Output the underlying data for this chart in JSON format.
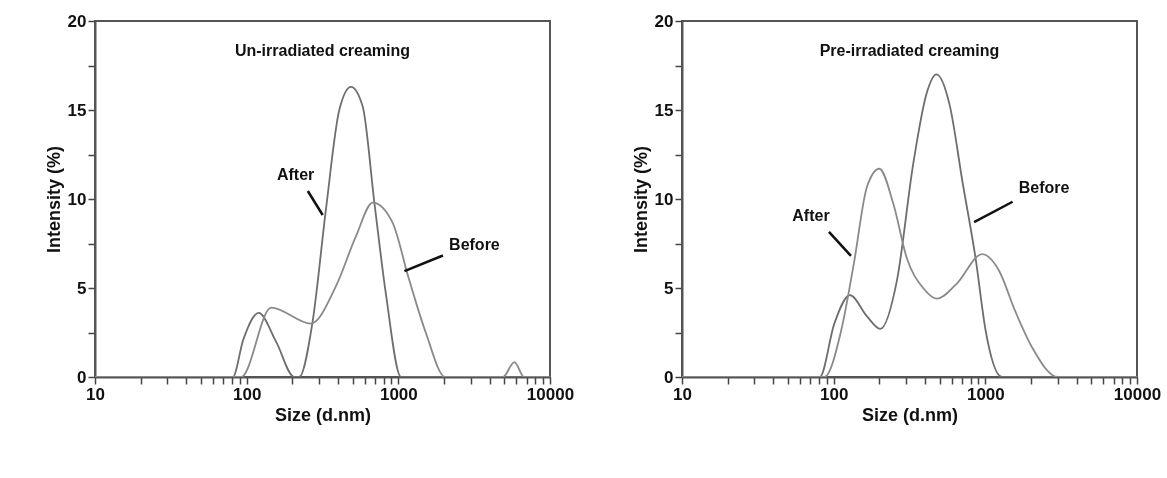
{
  "chart_data": [
    {
      "type": "line",
      "title": "Un-irradiated creaming",
      "xlabel": "Size (d.nm)",
      "ylabel": "Intensity (%)",
      "log": "x",
      "grid": false,
      "xlim": [
        10,
        10000
      ],
      "ylim": [
        0,
        20
      ],
      "xticks": [
        10,
        {
          "value": 20,
          "label": null
        },
        {
          "value": 30,
          "label": null
        },
        {
          "value": 40,
          "label": null
        },
        {
          "value": 50,
          "label": null
        },
        {
          "value": 60,
          "label": null
        },
        {
          "value": 70,
          "label": null
        },
        {
          "value": 80,
          "label": null
        },
        {
          "value": 90,
          "label": null
        },
        100,
        {
          "value": 200,
          "label": null
        },
        {
          "value": 300,
          "label": null
        },
        {
          "value": 400,
          "label": null
        },
        {
          "value": 500,
          "label": null
        },
        {
          "value": 600,
          "label": null
        },
        {
          "value": 700,
          "label": null
        },
        {
          "value": 800,
          "label": null
        },
        {
          "value": 900,
          "label": null
        },
        1000,
        {
          "value": 2000,
          "label": null
        },
        {
          "value": 3000,
          "label": null
        },
        {
          "value": 4000,
          "label": null
        },
        {
          "value": 5000,
          "label": null
        },
        {
          "value": 6000,
          "label": null
        },
        {
          "value": 7000,
          "label": null
        },
        {
          "value": 8000,
          "label": null
        },
        {
          "value": 9000,
          "label": null
        },
        10000
      ],
      "yticks": [
        0,
        {
          "value": 2.5,
          "label": null
        },
        5,
        {
          "value": 7.5,
          "label": null
        },
        10,
        {
          "value": 12.5,
          "label": null
        },
        15,
        {
          "value": 17.5,
          "label": null
        },
        20
      ],
      "series": [
        {
          "color": "#6e6e6e",
          "x": [
            10,
            81,
            95,
            120,
            156,
            206,
            222,
            272,
            333,
            408,
            487,
            582,
            695,
            830,
            1042,
            10000
          ],
          "values": [
            0,
            0,
            2.1,
            3.6,
            2.0,
            0,
            0,
            3.1,
            9.4,
            15.0,
            16.3,
            15.2,
            9.8,
            4.6,
            0,
            0
          ]
        },
        {
          "color": "#8a8a8a",
          "x": [
            10,
            92,
            145,
            265,
            388,
            525,
            678,
            913,
            1175,
            1516,
            2040,
            4900,
            5820,
            6760,
            10000
          ],
          "values": [
            0,
            0,
            3.9,
            3.0,
            5.1,
            7.9,
            9.8,
            8.7,
            5.5,
            2.5,
            0,
            0,
            0.84,
            0,
            0
          ]
        }
      ],
      "annotations": [
        {
          "text": "After",
          "x": 317,
          "y": 9.1
        },
        {
          "text": "Before",
          "x": 1097,
          "y": 5.95
        }
      ]
    },
    {
      "type": "line",
      "title": "Pre-irradiated creaming",
      "xlabel": "Size (d.nm)",
      "ylabel": "Intensity (%)",
      "log": "x",
      "grid": false,
      "xlim": [
        10,
        10000
      ],
      "ylim": [
        0,
        20
      ],
      "xticks": [
        10,
        {
          "value": 20,
          "label": null
        },
        {
          "value": 30,
          "label": null
        },
        {
          "value": 40,
          "label": null
        },
        {
          "value": 50,
          "label": null
        },
        {
          "value": 60,
          "label": null
        },
        {
          "value": 70,
          "label": null
        },
        {
          "value": 80,
          "label": null
        },
        {
          "value": 90,
          "label": null
        },
        100,
        {
          "value": 200,
          "label": null
        },
        {
          "value": 300,
          "label": null
        },
        {
          "value": 400,
          "label": null
        },
        {
          "value": 500,
          "label": null
        },
        {
          "value": 600,
          "label": null
        },
        {
          "value": 700,
          "label": null
        },
        {
          "value": 800,
          "label": null
        },
        {
          "value": 900,
          "label": null
        },
        1000,
        {
          "value": 2000,
          "label": null
        },
        {
          "value": 3000,
          "label": null
        },
        {
          "value": 4000,
          "label": null
        },
        {
          "value": 5000,
          "label": null
        },
        {
          "value": 6000,
          "label": null
        },
        {
          "value": 7000,
          "label": null
        },
        {
          "value": 8000,
          "label": null
        },
        {
          "value": 9000,
          "label": null
        },
        10000
      ],
      "yticks": [
        0,
        {
          "value": 2.5,
          "label": null
        },
        5,
        {
          "value": 7.5,
          "label": null
        },
        10,
        {
          "value": 12.5,
          "label": null
        },
        15,
        {
          "value": 17.5,
          "label": null
        },
        20
      ],
      "series": [
        {
          "color": "#6e6e6e",
          "x": [
            10,
            81,
            101,
            128,
            166,
            203,
            261,
            335,
            409,
            476,
            581,
            709,
            865,
            1005,
            1288,
            10000
          ],
          "values": [
            0,
            0,
            3.0,
            4.6,
            3.4,
            2.7,
            5.4,
            12.0,
            15.9,
            17.0,
            15.3,
            10.9,
            6.6,
            2.6,
            0,
            0
          ]
        },
        {
          "color": "#8a8a8a",
          "x": [
            10,
            87,
            112,
            136,
            166,
            200,
            248,
            303,
            389,
            480,
            641,
            955,
            1227,
            1574,
            2023,
            3020,
            10000
          ],
          "values": [
            0,
            0,
            2.6,
            6.4,
            10.7,
            11.7,
            9.7,
            6.7,
            5.0,
            4.4,
            5.2,
            6.9,
            6.0,
            3.7,
            1.7,
            0,
            0
          ]
        }
      ],
      "annotations": [
        {
          "text": "After",
          "x": 130,
          "y": 6.8
        },
        {
          "text": "Before",
          "x": 843,
          "y": 8.7
        }
      ]
    }
  ]
}
